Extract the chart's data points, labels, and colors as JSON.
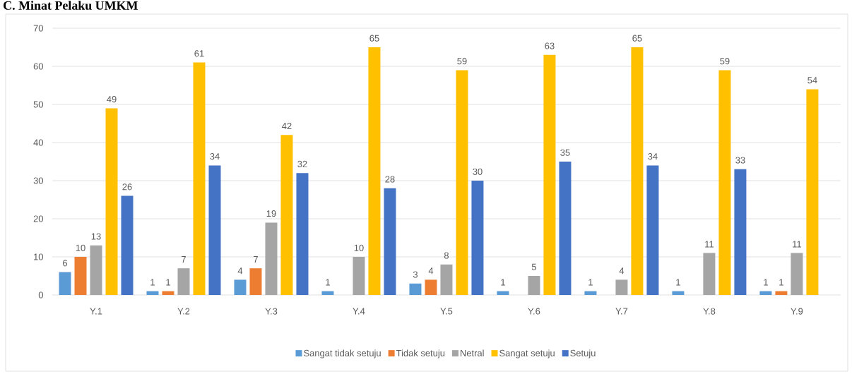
{
  "chart_data": {
    "type": "bar",
    "title": "C. Minat Pelaku UMKM",
    "categories": [
      "Y.1",
      "Y.2",
      "Y.3",
      "Y.4",
      "Y.5",
      "Y.6",
      "Y.7",
      "Y.8",
      "Y.9"
    ],
    "series": [
      {
        "name": "Sangat tidak setuju",
        "color": "#5b9bd5",
        "values": [
          6,
          1,
          4,
          1,
          3,
          1,
          1,
          1,
          1
        ]
      },
      {
        "name": "Tidak setuju",
        "color": "#ed7d31",
        "values": [
          10,
          1,
          7,
          null,
          4,
          null,
          null,
          null,
          1
        ]
      },
      {
        "name": "Netral",
        "color": "#a5a5a5",
        "values": [
          13,
          7,
          19,
          10,
          8,
          5,
          4,
          11,
          11
        ]
      },
      {
        "name": "Sangat setuju",
        "color": "#ffc000",
        "values": [
          49,
          61,
          42,
          65,
          59,
          63,
          65,
          59,
          54
        ]
      },
      {
        "name": "Setuju",
        "color": "#4472c4",
        "values": [
          26,
          34,
          32,
          28,
          30,
          35,
          34,
          33,
          null
        ]
      }
    ],
    "ylim": [
      0,
      70
    ],
    "yticks": [
      0,
      10,
      20,
      30,
      40,
      50,
      60,
      70
    ],
    "grid": "y",
    "legend": "bottom",
    "data_labels": true
  }
}
